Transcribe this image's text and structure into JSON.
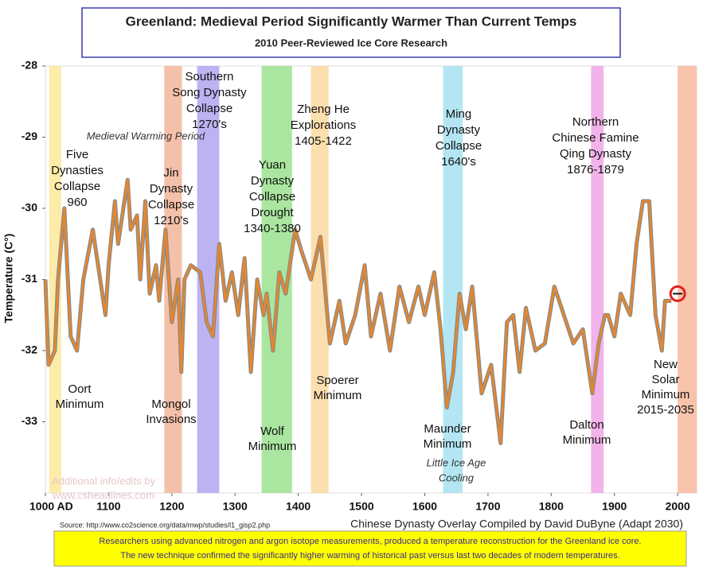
{
  "chart_data": {
    "type": "line",
    "title": "Greenland: Medieval Period Significantly Warmer Than Current Temps",
    "subtitle": "2010 Peer-Reviewed Ice Core Research",
    "y_label": "Temperature (C°)",
    "source": "Source: http://www.co2science.org/data/mwp/studies/l1_gisp2.php",
    "credit": "Chinese Dynasty Overlay Compiled by David DuByne (Adapt 2030)",
    "watermark": [
      "Additional info/edits by",
      "www.csheadlines.com"
    ],
    "footer": [
      "Researchers using advanced nitrogen and argon isotope measurements, produced a temperature reconstruction for the Greenland ice core.",
      "The new technique confirmed the significantly higher warming of historical past versus last two decades of modern temperatures."
    ],
    "xlim": [
      1000,
      2030
    ],
    "ylim": [
      -34,
      -28
    ],
    "xticks": [
      {
        "value": 1000,
        "label": "1000 AD"
      },
      1100,
      1200,
      1300,
      1400,
      1500,
      1600,
      1700,
      1800,
      1900,
      2000
    ],
    "yticks": [
      -28,
      -29,
      -30,
      -31,
      -32,
      -33
    ],
    "series": [
      {
        "color": "#e8862a",
        "x": [
          1000,
          1005,
          1015,
          1020,
          1030,
          1040,
          1050,
          1060,
          1075,
          1085,
          1095,
          1100,
          1110,
          1115,
          1125,
          1130,
          1135,
          1145,
          1150,
          1158,
          1165,
          1175,
          1180,
          1190,
          1200,
          1210,
          1215,
          1220,
          1230,
          1245,
          1255,
          1265,
          1275,
          1285,
          1295,
          1305,
          1315,
          1325,
          1335,
          1345,
          1350,
          1360,
          1370,
          1380,
          1395,
          1405,
          1420,
          1435,
          1450,
          1465,
          1475,
          1490,
          1505,
          1515,
          1530,
          1545,
          1560,
          1575,
          1590,
          1600,
          1615,
          1625,
          1635,
          1645,
          1655,
          1665,
          1675,
          1690,
          1705,
          1720,
          1730,
          1740,
          1750,
          1760,
          1775,
          1790,
          1805,
          1820,
          1835,
          1850,
          1865,
          1875,
          1885,
          1890,
          1900,
          1910,
          1925,
          1935,
          1945,
          1955,
          1965,
          1975,
          1980,
          1990
        ],
        "values": [
          -31.0,
          -32.2,
          -32.0,
          -31.0,
          -30.0,
          -31.8,
          -32.0,
          -31.0,
          -30.3,
          -30.9,
          -31.5,
          -30.8,
          -29.9,
          -30.5,
          -29.9,
          -29.6,
          -30.3,
          -30.1,
          -31.0,
          -29.9,
          -31.2,
          -30.8,
          -31.3,
          -30.3,
          -31.6,
          -31.0,
          -32.3,
          -31.0,
          -30.8,
          -30.9,
          -31.6,
          -31.8,
          -30.5,
          -31.3,
          -30.9,
          -31.5,
          -30.7,
          -32.3,
          -31.0,
          -31.5,
          -31.2,
          -32.0,
          -30.9,
          -31.2,
          -30.3,
          -30.6,
          -31.0,
          -30.4,
          -31.9,
          -31.3,
          -31.9,
          -31.5,
          -30.8,
          -31.8,
          -31.2,
          -32.0,
          -31.1,
          -31.6,
          -31.1,
          -31.5,
          -30.9,
          -31.7,
          -32.8,
          -32.3,
          -31.2,
          -31.7,
          -31.1,
          -32.6,
          -32.2,
          -33.3,
          -31.6,
          -31.5,
          -32.3,
          -31.4,
          -32.0,
          -31.9,
          -31.1,
          -31.5,
          -31.9,
          -31.7,
          -32.6,
          -31.9,
          -31.5,
          -31.5,
          -31.8,
          -31.2,
          -31.5,
          -30.5,
          -29.9,
          -29.9,
          -31.5,
          -32.0,
          -31.3,
          -31.3
        ]
      }
    ],
    "marker": {
      "x": 2000,
      "y": -31.2,
      "color": "#e02020"
    },
    "bands": [
      {
        "range": [
          1006,
          1025
        ],
        "color": "#fbe89a"
      },
      {
        "range": [
          1188,
          1216
        ],
        "color": "#f3b59a"
      },
      {
        "range": [
          1240,
          1275
        ],
        "color": "#b2a6f0"
      },
      {
        "range": [
          1342,
          1390
        ],
        "color": "#9be28e"
      },
      {
        "range": [
          1420,
          1448
        ],
        "color": "#fbd9a0"
      },
      {
        "range": [
          1629,
          1660
        ],
        "color": "#a6e2f0"
      },
      {
        "range": [
          1863,
          1883
        ],
        "color": "#f0a6e6"
      },
      {
        "range": [
          2000,
          2030
        ],
        "color": "#f8b89c"
      }
    ],
    "annotations": [
      [
        "Five",
        "Dynasties",
        "Collapse",
        "960"
      ],
      [
        "Oort",
        "Minimum"
      ],
      [
        "Medieval Warming Period"
      ],
      [
        "Jin",
        "Dynasty",
        "Collapse",
        "1210's"
      ],
      [
        "Mongol",
        "Invasions"
      ],
      [
        "Southern",
        "Song Dynasty",
        "Collapse",
        "1270's"
      ],
      [
        "Yuan",
        "Dynasty",
        "Collapse",
        "Drought",
        "1340-1380"
      ],
      [
        "Wolf",
        "Minimum"
      ],
      [
        "Zheng He",
        "Explorations",
        "1405-1422"
      ],
      [
        "Spoerer",
        "Minimum"
      ],
      [
        "Ming",
        "Dynasty",
        "Collapse",
        "1640's"
      ],
      [
        "Maunder",
        "Minimum"
      ],
      [
        "Little Ice Age",
        "Cooling"
      ],
      [
        "Northern",
        "Chinese Famine",
        "Qing Dynasty",
        "1876-1879"
      ],
      [
        "Dalton",
        "Minimum"
      ],
      [
        "New",
        "Solar",
        "Minimum",
        "2015-2035"
      ]
    ]
  }
}
